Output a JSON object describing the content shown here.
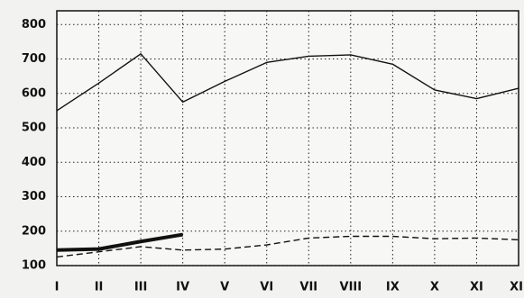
{
  "chart_data": {
    "type": "line",
    "categories": [
      "I",
      "II",
      "III",
      "IV",
      "V",
      "VI",
      "VII",
      "VIII",
      "IX",
      "X",
      "XI",
      "XII"
    ],
    "series": [
      {
        "color": "#111111",
        "style": "solid",
        "values": [
          550,
          630,
          715,
          575,
          635,
          690,
          708,
          712,
          685,
          610,
          585,
          615
        ]
      },
      {
        "color": "#111111",
        "style": "dashed",
        "values": [
          125,
          140,
          155,
          145,
          148,
          160,
          180,
          185,
          185,
          178,
          180,
          175
        ]
      },
      {
        "color": "#111111",
        "style": "thick",
        "values": [
          145,
          148,
          170,
          190,
          null,
          null,
          null,
          null,
          null,
          null,
          null,
          null
        ]
      }
    ],
    "ylim": [
      100,
      840
    ],
    "yticks": [
      100,
      200,
      300,
      400,
      500,
      600,
      700,
      800
    ],
    "grid": true
  }
}
